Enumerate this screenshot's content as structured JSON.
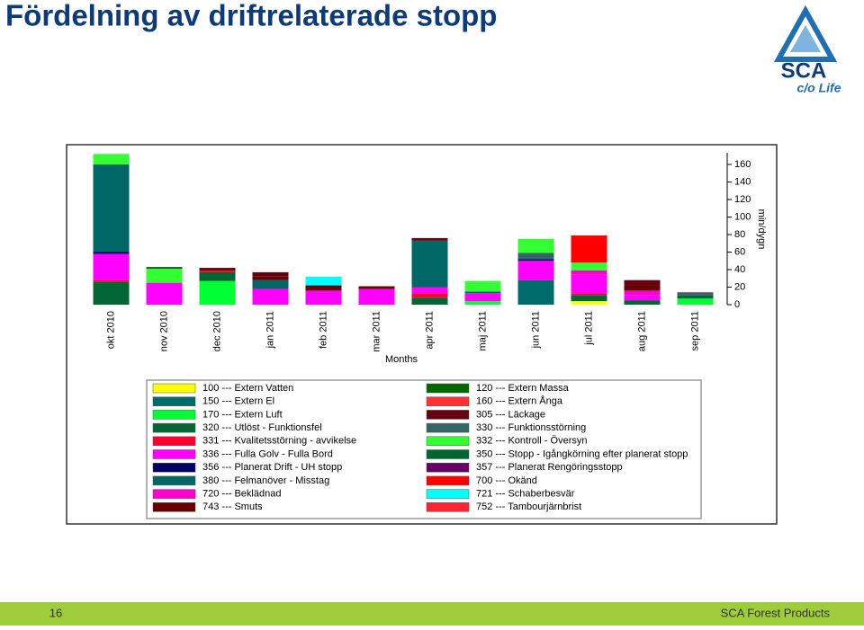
{
  "slide": {
    "title": "Fördelning av driftrelaterade stopp",
    "logo_text": "SCA",
    "logo_tagline": "c/o Life",
    "page_number": "16",
    "footer": "SCA Forest Products"
  },
  "chart_data": {
    "type": "stacked_bar",
    "x_label": "Months",
    "y_label": "min/dygn",
    "y_axis_side": "right",
    "categories": [
      "okt 2010",
      "nov 2010",
      "dec 2010",
      "jan 2011",
      "feb 2011",
      "mar 2011",
      "apr 2011",
      "maj 2011",
      "jun 2011",
      "jul 2011",
      "aug 2011",
      "sep 2011"
    ],
    "ylim": [
      0,
      180
    ],
    "yticks": [
      0,
      20,
      40,
      60,
      80,
      100,
      120,
      140,
      160
    ],
    "series": [
      {
        "name": "100 --- Extern Vatten",
        "color": "#ffff00",
        "values": [
          0,
          0,
          0,
          0,
          0,
          0,
          0,
          0,
          0,
          4,
          0,
          0
        ]
      },
      {
        "name": "150 --- Extern El",
        "color": "#006b6b",
        "values": [
          0,
          0,
          0,
          0,
          0,
          0,
          0,
          0,
          28,
          0,
          0,
          0
        ]
      },
      {
        "name": "170 --- Extern Luft",
        "color": "#00ff33",
        "values": [
          0,
          0,
          27,
          0,
          0,
          0,
          0,
          4,
          0,
          0,
          0,
          7
        ]
      },
      {
        "name": "320 --- Utlöst - Funktionsfel",
        "color": "#006633",
        "values": [
          26,
          0,
          10,
          0,
          0,
          0,
          8,
          0,
          0,
          7,
          5,
          4
        ]
      },
      {
        "name": "331 --- Kvalitetsstörning - avvikelse",
        "color": "#ff0033",
        "values": [
          2,
          0,
          2,
          0,
          0,
          0,
          5,
          0,
          0,
          2,
          0,
          0
        ]
      },
      {
        "name": "336 --- Fulla Golv - Fulla Bord",
        "color": "#ff00ff",
        "values": [
          30,
          25,
          0,
          18,
          16,
          18,
          7,
          9,
          22,
          21,
          6,
          0
        ]
      },
      {
        "name": "356 --- Planerat Drift - UH stopp",
        "color": "#000066",
        "values": [
          2,
          0,
          0,
          0,
          0,
          0,
          0,
          0,
          2,
          0,
          0,
          0
        ]
      },
      {
        "name": "380 --- Felmanöver - Misstag",
        "color": "#006666",
        "values": [
          100,
          0,
          0,
          10,
          0,
          0,
          53,
          2,
          0,
          0,
          0,
          0
        ]
      },
      {
        "name": "720 --- Beklädnad",
        "color": "#ff00cc",
        "values": [
          0,
          0,
          0,
          0,
          0,
          0,
          0,
          0,
          0,
          5,
          5,
          0
        ]
      },
      {
        "name": "743 --- Smuts",
        "color": "#660000",
        "values": [
          0,
          0,
          0,
          4,
          3,
          3,
          0,
          0,
          0,
          0,
          6,
          0
        ]
      },
      {
        "name": "120 --- Extern Massa",
        "color": "#006600",
        "values": [
          0,
          0,
          0,
          0,
          0,
          0,
          0,
          0,
          0,
          0,
          0,
          0
        ]
      },
      {
        "name": "160 --- Extern Ånga",
        "color": "#ff3333",
        "values": [
          0,
          0,
          0,
          0,
          0,
          0,
          0,
          0,
          0,
          0,
          0,
          0
        ]
      },
      {
        "name": "305 --- Läckage",
        "color": "#660011",
        "values": [
          0,
          0,
          3,
          5,
          3,
          0,
          3,
          0,
          0,
          0,
          6,
          0
        ]
      },
      {
        "name": "330 --- Funktionsstörning",
        "color": "#336666",
        "values": [
          0,
          0,
          0,
          0,
          0,
          0,
          0,
          0,
          7,
          0,
          0,
          2
        ]
      },
      {
        "name": "332 --- Kontroll - Översyn",
        "color": "#33ff33",
        "values": [
          12,
          16,
          0,
          0,
          0,
          0,
          0,
          12,
          16,
          9,
          0,
          0
        ]
      },
      {
        "name": "350 --- Stopp - Igångkörning efter planerat stopp",
        "color": "#00662e",
        "values": [
          0,
          2,
          0,
          0,
          0,
          0,
          0,
          0,
          0,
          0,
          0,
          0
        ]
      },
      {
        "name": "357 --- Planerat Rengöringsstopp",
        "color": "#660066",
        "values": [
          0,
          0,
          0,
          0,
          0,
          0,
          0,
          0,
          0,
          0,
          0,
          1
        ]
      },
      {
        "name": "700 --- Okänd",
        "color": "#ff0000",
        "values": [
          0,
          0,
          0,
          0,
          0,
          0,
          0,
          0,
          0,
          31,
          0,
          0
        ]
      },
      {
        "name": "721 --- Schaberbesvär",
        "color": "#00ffff",
        "values": [
          0,
          0,
          0,
          0,
          10,
          0,
          0,
          0,
          0,
          0,
          0,
          0
        ]
      },
      {
        "name": "752 --- Tambourjärnbrist",
        "color": "#ff2233",
        "values": [
          0,
          0,
          0,
          0,
          0,
          0,
          0,
          0,
          0,
          0,
          0,
          0
        ]
      }
    ]
  }
}
